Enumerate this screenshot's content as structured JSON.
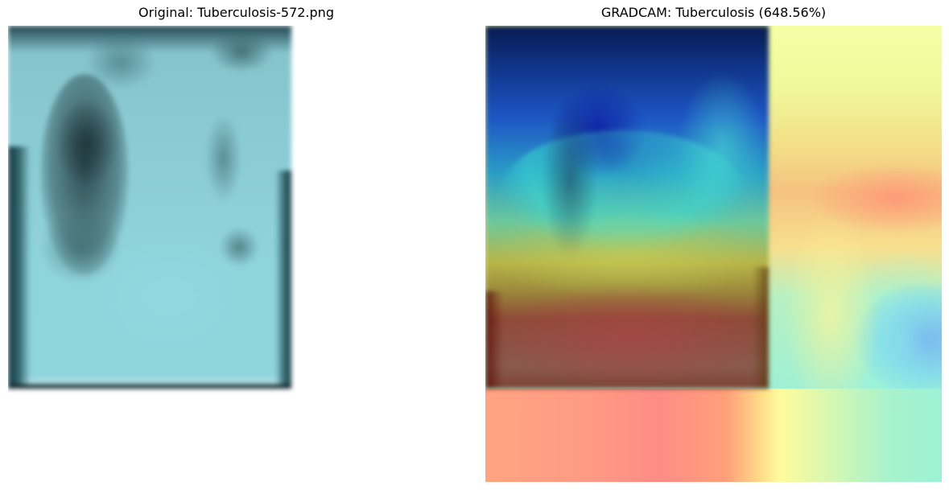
{
  "left_panel": {
    "title": "Original: Tuberculosis-572.png"
  },
  "right_panel": {
    "title": "GRADCAM: Tuberculosis (648.56%)"
  },
  "colors": {
    "xray_tint": "#8fd3db",
    "cam_hot": "#ff8c86",
    "cam_cold": "#6f90f4",
    "cam_mid": "#fffb9c"
  }
}
